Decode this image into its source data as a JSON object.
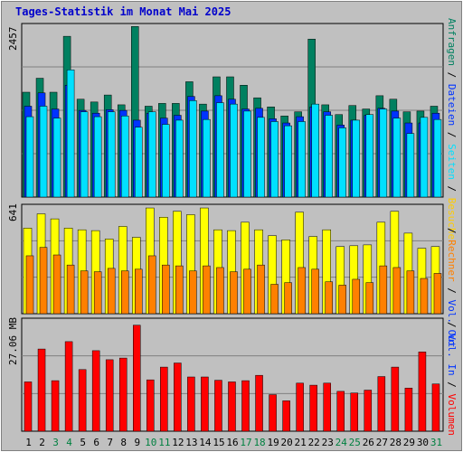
{
  "title": "Tages-Statistik im Monat Mai 2025",
  "colors": {
    "anfragen": "#008060",
    "dateien": "#0033ff",
    "seiten": "#00e0ff",
    "besuche": "#ffff00",
    "rechner": "#ff8000",
    "volumen": "#ff0000",
    "weekend_day": "#008040",
    "weekday": "#000000"
  },
  "right_legend": {
    "top": [
      {
        "text": "Anfragen",
        "color": "#008060"
      },
      {
        "text": " / ",
        "color": "#000000"
      },
      {
        "text": "Dateien",
        "color": "#0033ff"
      },
      {
        "text": " / ",
        "color": "#000000"
      },
      {
        "text": "Seiten",
        "color": "#00e0ff"
      },
      {
        "text": " / ",
        "color": "#000000"
      },
      {
        "text": "Besuche",
        "color": "#ffcc00"
      }
    ],
    "mid": [
      {
        "text": " / ",
        "color": "#000000"
      },
      {
        "text": "Rechner",
        "color": "#ff8000"
      },
      {
        "text": " / ",
        "color": "#000000"
      },
      {
        "text": "Vol. Out",
        "color": "#0033ff"
      }
    ],
    "bottom": [
      {
        "text": " / ",
        "color": "#000000"
      },
      {
        "text": "Vol. In",
        "color": "#0033ff"
      },
      {
        "text": " / ",
        "color": "#000000"
      },
      {
        "text": "Volumen",
        "color": "#ff0000"
      }
    ]
  },
  "chart_data": [
    {
      "type": "bar",
      "name": "requests-files-pages",
      "ymax_label": "2457",
      "ylim": [
        0,
        2457
      ],
      "categories": [
        "1",
        "2",
        "3",
        "4",
        "5",
        "6",
        "7",
        "8",
        "9",
        "10",
        "11",
        "12",
        "13",
        "14",
        "15",
        "16",
        "17",
        "18",
        "19",
        "20",
        "21",
        "22",
        "23",
        "24",
        "25",
        "26",
        "27",
        "28",
        "29",
        "30",
        "31"
      ],
      "series": [
        {
          "name": "Anfragen",
          "values": [
            1500,
            1700,
            1500,
            2300,
            1400,
            1360,
            1460,
            1320,
            2440,
            1300,
            1340,
            1340,
            1650,
            1330,
            1720,
            1720,
            1600,
            1420,
            1290,
            1160,
            1220,
            2260,
            1320,
            1180,
            1310,
            1260,
            1450,
            1400,
            1220,
            1230,
            1300
          ]
        },
        {
          "name": "Dateien",
          "values": [
            1300,
            1490,
            1260,
            1600,
            1240,
            1200,
            1250,
            1240,
            1100,
            1200,
            1130,
            1170,
            1440,
            1230,
            1450,
            1400,
            1260,
            1270,
            1120,
            1060,
            1150,
            1290,
            1220,
            1030,
            1100,
            1170,
            1270,
            1230,
            1060,
            1060,
            1200
          ]
        },
        {
          "name": "Seiten",
          "values": [
            1150,
            1300,
            1130,
            1820,
            1220,
            1150,
            1220,
            1160,
            1000,
            1220,
            1040,
            1100,
            1380,
            1110,
            1350,
            1330,
            1230,
            1140,
            1080,
            1020,
            1080,
            1330,
            1170,
            990,
            1100,
            1180,
            1260,
            1130,
            910,
            1140,
            1110
          ]
        }
      ]
    },
    {
      "type": "bar",
      "name": "visits-hosts",
      "ymax_label": "641",
      "ylim": [
        0,
        641
      ],
      "categories": [
        "1",
        "2",
        "3",
        "4",
        "5",
        "6",
        "7",
        "8",
        "9",
        "10",
        "11",
        "12",
        "13",
        "14",
        "15",
        "16",
        "17",
        "18",
        "19",
        "20",
        "21",
        "22",
        "23",
        "24",
        "25",
        "26",
        "27",
        "28",
        "29",
        "30",
        "31"
      ],
      "series": [
        {
          "name": "Besuche",
          "values": [
            510,
            595,
            565,
            510,
            500,
            495,
            445,
            520,
            455,
            630,
            575,
            610,
            590,
            630,
            500,
            495,
            545,
            500,
            465,
            440,
            605,
            460,
            500,
            400,
            405,
            410,
            545,
            610,
            480,
            390,
            400
          ]
        },
        {
          "name": "Rechner",
          "values": [
            345,
            395,
            350,
            290,
            255,
            250,
            270,
            255,
            265,
            345,
            290,
            285,
            255,
            285,
            275,
            250,
            265,
            290,
            175,
            185,
            275,
            265,
            190,
            170,
            205,
            185,
            285,
            275,
            255,
            210,
            240
          ]
        }
      ]
    },
    {
      "type": "bar",
      "name": "volume",
      "ymax_label": "27.06 MB",
      "ylim": [
        0,
        27.06
      ],
      "categories": [
        "1",
        "2",
        "3",
        "4",
        "5",
        "6",
        "7",
        "8",
        "9",
        "10",
        "11",
        "12",
        "13",
        "14",
        "15",
        "16",
        "17",
        "18",
        "19",
        "20",
        "21",
        "22",
        "23",
        "24",
        "25",
        "26",
        "27",
        "28",
        "29",
        "30",
        "31"
      ],
      "series": [
        {
          "name": "Volumen",
          "values": [
            12.0,
            20.0,
            12.3,
            21.8,
            15.0,
            19.6,
            17.4,
            17.8,
            25.8,
            12.5,
            15.6,
            16.6,
            13.2,
            13.2,
            12.4,
            12.0,
            12.3,
            13.6,
            8.9,
            7.4,
            11.7,
            11.2,
            11.7,
            9.7,
            9.3,
            10.0,
            13.3,
            15.6,
            10.5,
            19.3,
            11.5
          ]
        }
      ]
    }
  ],
  "day_labels": [
    {
      "text": "1",
      "weekend": false
    },
    {
      "text": "2",
      "weekend": false
    },
    {
      "text": "3",
      "weekend": true
    },
    {
      "text": "4",
      "weekend": true
    },
    {
      "text": "5",
      "weekend": false
    },
    {
      "text": "6",
      "weekend": false
    },
    {
      "text": "7",
      "weekend": false
    },
    {
      "text": "8",
      "weekend": false
    },
    {
      "text": "9",
      "weekend": false
    },
    {
      "text": "10",
      "weekend": true
    },
    {
      "text": "11",
      "weekend": true
    },
    {
      "text": "12",
      "weekend": false
    },
    {
      "text": "13",
      "weekend": false
    },
    {
      "text": "14",
      "weekend": false
    },
    {
      "text": "15",
      "weekend": false
    },
    {
      "text": "16",
      "weekend": false
    },
    {
      "text": "17",
      "weekend": true
    },
    {
      "text": "18",
      "weekend": true
    },
    {
      "text": "19",
      "weekend": false
    },
    {
      "text": "20",
      "weekend": false
    },
    {
      "text": "21",
      "weekend": false
    },
    {
      "text": "22",
      "weekend": false
    },
    {
      "text": "23",
      "weekend": false
    },
    {
      "text": "24",
      "weekend": true
    },
    {
      "text": "25",
      "weekend": true
    },
    {
      "text": "26",
      "weekend": false
    },
    {
      "text": "27",
      "weekend": false
    },
    {
      "text": "28",
      "weekend": false
    },
    {
      "text": "29",
      "weekend": false
    },
    {
      "text": "30",
      "weekend": false
    },
    {
      "text": "31",
      "weekend": true
    }
  ]
}
